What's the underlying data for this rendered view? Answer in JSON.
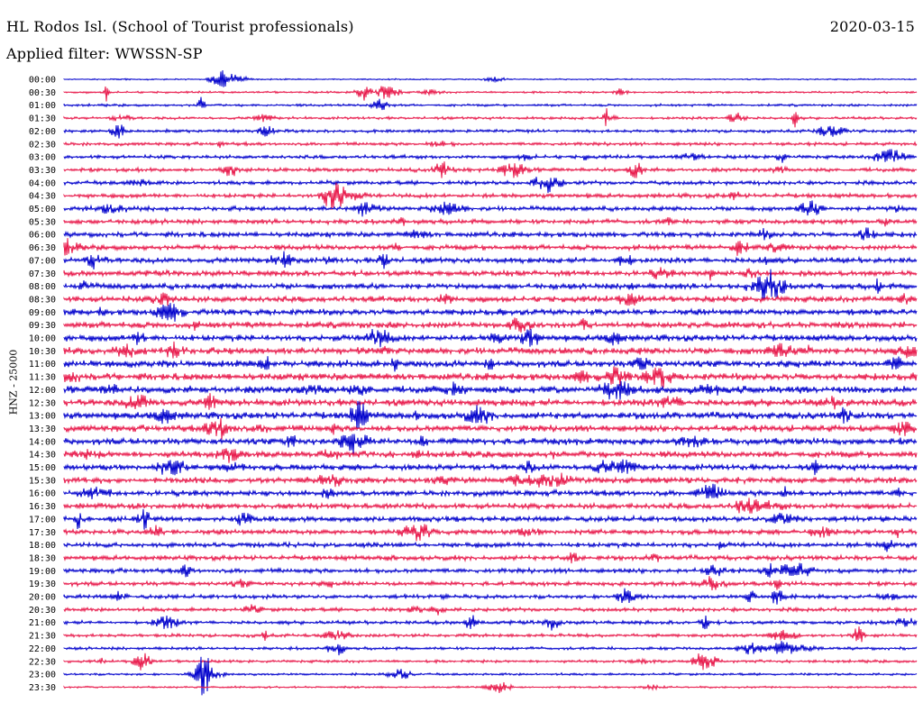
{
  "header": {
    "station": "HL Rodos Isl. (School of Tourist professionals)",
    "date": "2020-03-15",
    "filter": "Applied filter: WWSSN-SP"
  },
  "chart_data": {
    "type": "line",
    "title": "HL Rodos Isl. (School of Tourist professionals)",
    "date": "2020-03-15",
    "filter": "WWSSN-SP",
    "ylabel": "HNZ - 25000",
    "row_labels": [
      "00:00",
      "00:30",
      "01:00",
      "01:30",
      "02:00",
      "02:30",
      "03:00",
      "03:30",
      "04:00",
      "04:30",
      "05:00",
      "05:30",
      "06:00",
      "06:30",
      "07:00",
      "07:30",
      "08:00",
      "08:30",
      "09:00",
      "09:30",
      "10:00",
      "10:30",
      "11:00",
      "11:30",
      "12:00",
      "12:30",
      "13:00",
      "13:30",
      "14:00",
      "14:30",
      "15:00",
      "15:30",
      "16:00",
      "16:30",
      "17:00",
      "17:30",
      "18:00",
      "18:30",
      "19:00",
      "19:30",
      "20:00",
      "20:30",
      "21:00",
      "21:30",
      "22:00",
      "22:30",
      "23:00",
      "23:30"
    ],
    "series_colors": [
      "#0000cc",
      "#e8184a"
    ],
    "grid": false,
    "legend": "none"
  }
}
